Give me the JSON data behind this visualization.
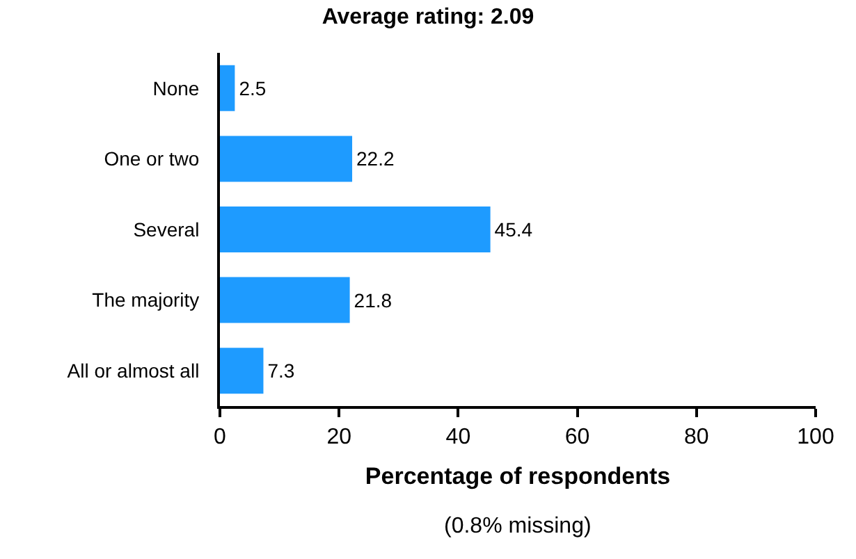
{
  "chart_data": {
    "type": "bar",
    "orientation": "horizontal",
    "title": "Average rating: 2.09",
    "xlabel": "Percentage of respondents",
    "annotations": [
      "(0.8% missing)"
    ],
    "categories": [
      "None",
      "One or two",
      "Several",
      "The majority",
      "All or almost all"
    ],
    "values": [
      2.5,
      22.2,
      45.4,
      21.8,
      7.3
    ],
    "color": "#1e9bff",
    "xlim": [
      0,
      100
    ],
    "xticks": [
      0,
      20,
      40,
      60,
      80,
      100
    ],
    "data_labels": true
  }
}
